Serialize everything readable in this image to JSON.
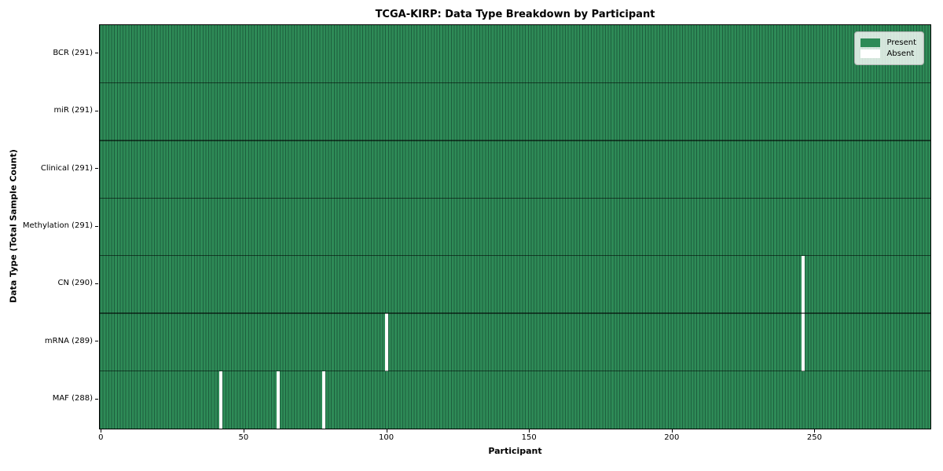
{
  "chart_data": {
    "type": "heatmap",
    "title": "TCGA-KIRP: Data Type Breakdown by Participant",
    "xlabel": "Participant",
    "ylabel": "Data Type (Total Sample Count)",
    "n_participants": 291,
    "x_ticks": [
      0,
      50,
      100,
      150,
      200,
      250
    ],
    "legend": [
      {
        "name": "present",
        "label": "Present",
        "color": "#2e8b57"
      },
      {
        "name": "absent",
        "label": "Absent",
        "color": "#ffffff"
      }
    ],
    "legend_position": "upper right",
    "rows": [
      {
        "label": "BCR (291)",
        "data_type": "BCR",
        "present_count": 291,
        "absent_participants": []
      },
      {
        "label": "miR (291)",
        "data_type": "miR",
        "present_count": 291,
        "absent_participants": []
      },
      {
        "label": "Clinical (291)",
        "data_type": "Clinical",
        "present_count": 291,
        "absent_participants": []
      },
      {
        "label": "Methylation (291)",
        "data_type": "Methylation",
        "present_count": 291,
        "absent_participants": []
      },
      {
        "label": "CN (290)",
        "data_type": "CN",
        "present_count": 290,
        "absent_participants": [
          246
        ]
      },
      {
        "label": "mRNA (289)",
        "data_type": "mRNA",
        "present_count": 289,
        "absent_participants": [
          100,
          246
        ]
      },
      {
        "label": "MAF (288)",
        "data_type": "MAF",
        "present_count": 288,
        "absent_participants": [
          42,
          62,
          78
        ]
      }
    ],
    "colors": {
      "present": "#2e8b57",
      "absent": "#ffffff",
      "bar_edge": "#1d5f3e",
      "row_line": "rgba(0,0,0,0.55)",
      "spine": "#000000"
    },
    "grid": false
  }
}
